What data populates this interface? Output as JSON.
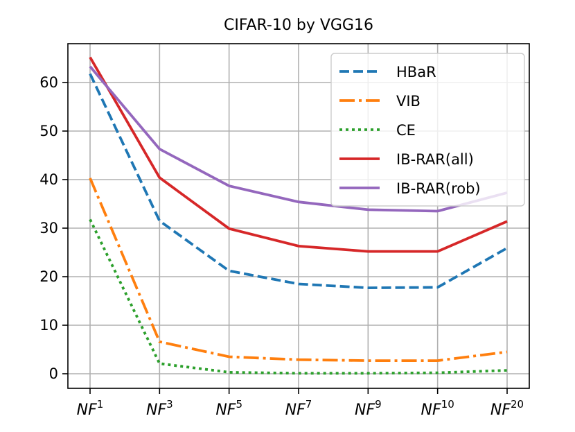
{
  "chart_data": {
    "type": "line",
    "title": "CIFAR-10 by VGG16",
    "xlabel": "",
    "ylabel": "",
    "categories": [
      {
        "base": "NF",
        "sup": "1"
      },
      {
        "base": "NF",
        "sup": "3"
      },
      {
        "base": "NF",
        "sup": "5"
      },
      {
        "base": "NF",
        "sup": "7"
      },
      {
        "base": "NF",
        "sup": "9"
      },
      {
        "base": "NF",
        "sup": "10"
      },
      {
        "base": "NF",
        "sup": "20"
      }
    ],
    "ylim": [
      -3,
      68
    ],
    "yticks": [
      0,
      10,
      20,
      30,
      40,
      50,
      60
    ],
    "grid": true,
    "legend_position": "top-right",
    "series": [
      {
        "name": "HBaR",
        "color": "#1f77b4",
        "dash": "dashed",
        "values": [
          61.8,
          31.5,
          21.2,
          18.5,
          17.7,
          17.8,
          25.9
        ]
      },
      {
        "name": "VIB",
        "color": "#ff7f0e",
        "dash": "dashdot",
        "values": [
          40.3,
          6.6,
          3.5,
          2.9,
          2.7,
          2.7,
          4.5
        ]
      },
      {
        "name": "CE",
        "color": "#2ca02c",
        "dash": "dotted",
        "values": [
          31.8,
          2.1,
          0.3,
          0.1,
          0.1,
          0.2,
          0.7
        ]
      },
      {
        "name": "IB-RAR(all)",
        "color": "#d62728",
        "dash": "solid",
        "values": [
          65.2,
          40.4,
          29.9,
          26.3,
          25.2,
          25.2,
          31.4
        ]
      },
      {
        "name": "IB-RAR(rob)",
        "color": "#9467bd",
        "dash": "solid",
        "values": [
          63.3,
          46.3,
          38.7,
          35.4,
          33.8,
          33.5,
          37.3
        ]
      }
    ]
  }
}
